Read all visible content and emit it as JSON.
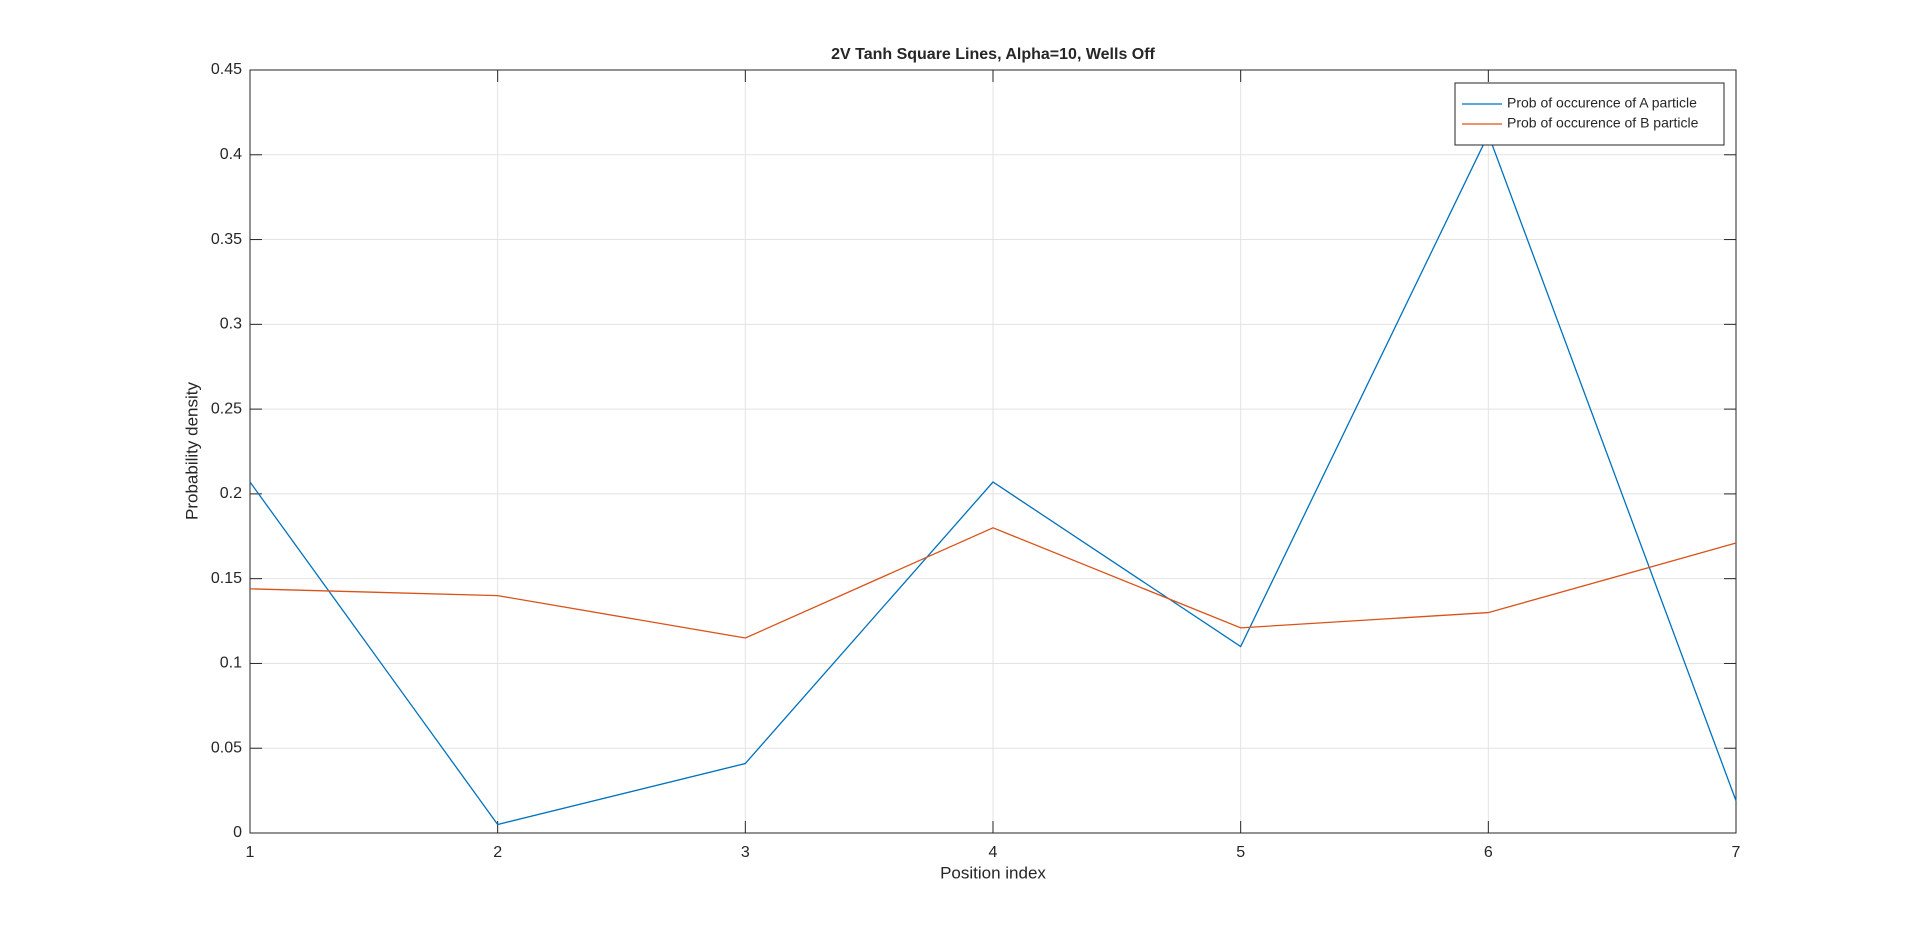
{
  "chart_data": {
    "type": "line",
    "title": "2V Tanh Square Lines, Alpha=10, Wells Off",
    "x_label": "Position index",
    "y_label": "Probability density",
    "x": [
      1,
      2,
      3,
      4,
      5,
      6,
      7
    ],
    "series": [
      {
        "name": "Prob of occurence of A particle",
        "color": "#0072bd",
        "values": [
          0.207,
          0.005,
          0.041,
          0.207,
          0.11,
          0.412,
          0.019
        ]
      },
      {
        "name": "Prob of occurence of B particle",
        "color": "#d95319",
        "values": [
          0.144,
          0.14,
          0.115,
          0.18,
          0.121,
          0.13,
          0.171
        ]
      }
    ],
    "xlim": [
      1,
      7
    ],
    "xticks": [
      1,
      2,
      3,
      4,
      5,
      6,
      7
    ],
    "ylim": [
      0,
      0.45
    ],
    "yticks": [
      0,
      0.05,
      0.1,
      0.15,
      0.2,
      0.25,
      0.3,
      0.35,
      0.4,
      0.45
    ],
    "grid": true,
    "legend": "northeast"
  }
}
